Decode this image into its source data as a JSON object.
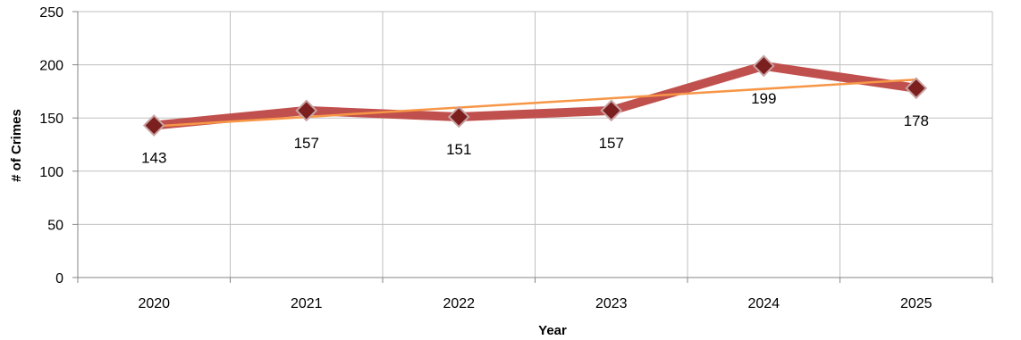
{
  "chart_data": {
    "type": "line",
    "categories": [
      "2020",
      "2021",
      "2022",
      "2023",
      "2024",
      "2025"
    ],
    "series": [
      {
        "values": [
          143,
          157,
          151,
          157,
          199,
          178
        ],
        "color": "#c0504d",
        "marker_color": "#7b1f1f"
      }
    ],
    "trendline": {
      "type": "linear",
      "color": "#f79646"
    },
    "data_labels": [
      "143",
      "157",
      "151",
      "157",
      "199",
      "178"
    ],
    "title": "",
    "xlabel": "Year",
    "ylabel": "# of Crimes",
    "ylim": [
      0,
      250
    ],
    "yticks": [
      "0",
      "50",
      "100",
      "150",
      "200",
      "250"
    ],
    "grid": true,
    "legend": "none"
  }
}
